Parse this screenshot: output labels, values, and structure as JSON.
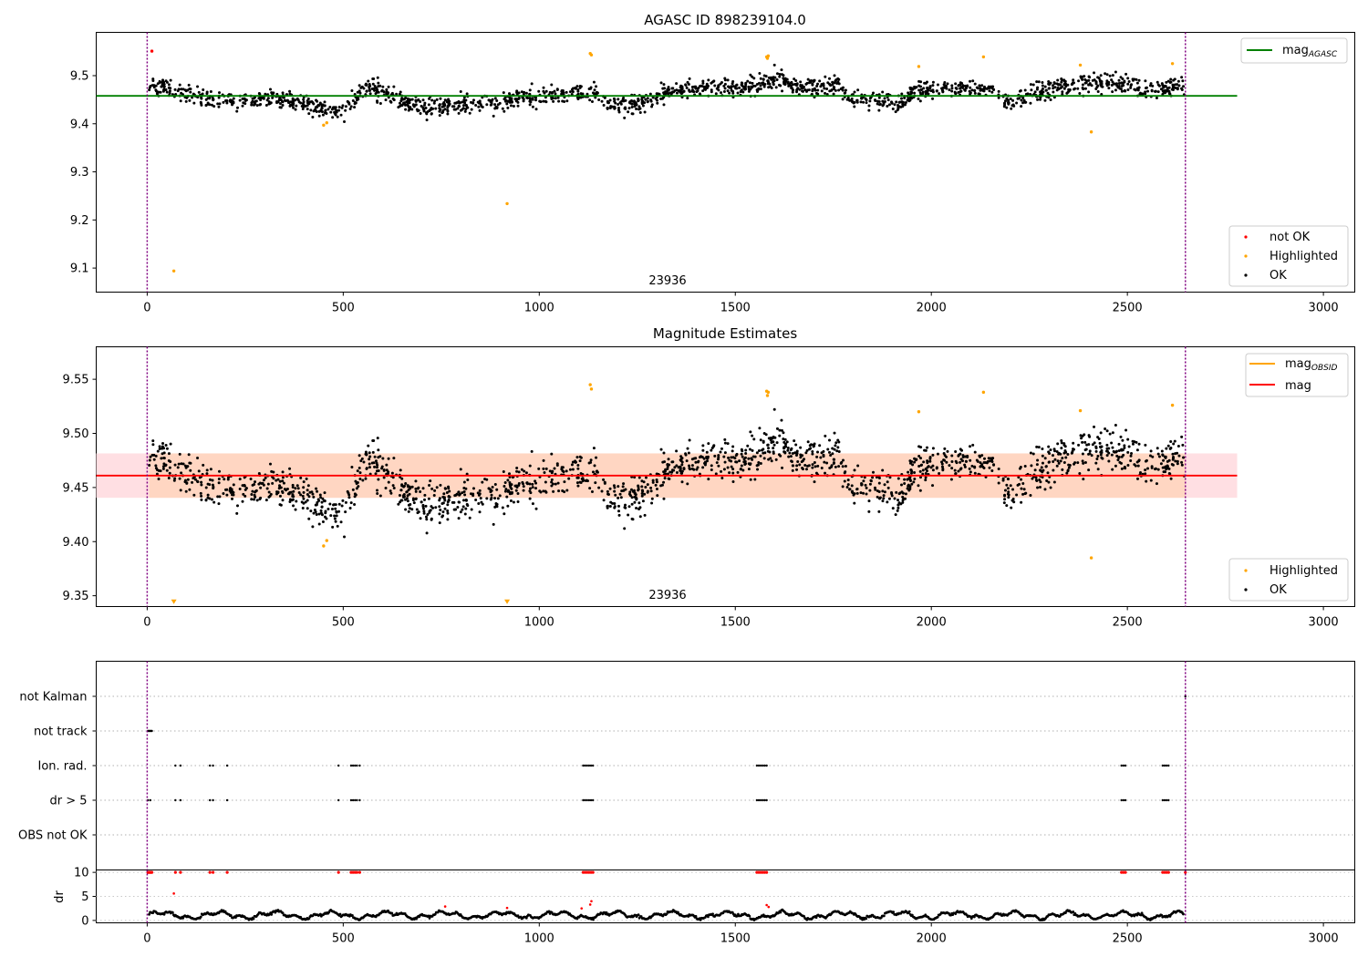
{
  "chart_data": [
    {
      "type": "scatter",
      "title": "AGASC ID 898239104.0",
      "xlim": [
        -130,
        3080
      ],
      "ylim": [
        9.05,
        9.59
      ],
      "xticks": [
        0,
        500,
        1000,
        1500,
        2000,
        2500,
        3000
      ],
      "yticks": [
        9.1,
        9.2,
        9.3,
        9.4,
        9.5
      ],
      "ytick_labels": [
        "9.1",
        "9.2",
        "9.3",
        "9.4",
        "9.5"
      ],
      "annotation": {
        "text": "23936",
        "x": 1320,
        "y_label_pos": "bottom"
      },
      "vlines": [
        0,
        2648
      ],
      "hline": {
        "name": "mag",
        "sub": "AGASC",
        "y": 9.458,
        "x_range": [
          -130,
          2780
        ],
        "color": "#008000"
      },
      "legend_lines": [
        {
          "name": "mag",
          "sub": "AGASC",
          "color": "#008000"
        }
      ],
      "legend_points": [
        {
          "name": "not OK",
          "color": "#ff0000"
        },
        {
          "name": "Highlighted",
          "color": "#ffa500"
        },
        {
          "name": "OK",
          "color": "#000000"
        }
      ],
      "series": [
        {
          "name": "not OK",
          "color": "#ff0000",
          "points": [
            [
              12,
              9.551
            ]
          ]
        },
        {
          "name": "Highlighted",
          "color": "#ffa500",
          "points": [
            [
              68,
              9.094
            ],
            [
              450,
              9.397
            ],
            [
              458,
              9.402
            ],
            [
              918,
              9.234
            ],
            [
              1130,
              9.546
            ],
            [
              1133,
              9.543
            ],
            [
              1580,
              9.539
            ],
            [
              1582,
              9.536
            ],
            [
              1584,
              9.541
            ],
            [
              1968,
              9.519
            ],
            [
              2133,
              9.539
            ],
            [
              2380,
              9.522
            ],
            [
              2408,
              9.383
            ],
            [
              2615,
              9.525
            ]
          ]
        }
      ],
      "ok_series": {
        "name": "OK",
        "color": "#000000",
        "x_range": [
          5,
          2645
        ],
        "count": 1800,
        "scatter": 0.0095,
        "trend": [
          [
            5,
            9.482
          ],
          [
            60,
            9.472
          ],
          [
            120,
            9.455
          ],
          [
            200,
            9.447
          ],
          [
            300,
            9.452
          ],
          [
            380,
            9.448
          ],
          [
            440,
            9.432
          ],
          [
            490,
            9.423
          ],
          [
            540,
            9.46
          ],
          [
            560,
            9.478
          ],
          [
            640,
            9.453
          ],
          [
            700,
            9.432
          ],
          [
            800,
            9.44
          ],
          [
            880,
            9.442
          ],
          [
            960,
            9.456
          ],
          [
            1100,
            9.462
          ],
          [
            1140,
            9.468
          ],
          [
            1170,
            9.445
          ],
          [
            1240,
            9.433
          ],
          [
            1300,
            9.462
          ],
          [
            1400,
            9.473
          ],
          [
            1500,
            9.473
          ],
          [
            1560,
            9.477
          ],
          [
            1600,
            9.496
          ],
          [
            1650,
            9.478
          ],
          [
            1760,
            9.478
          ],
          [
            1800,
            9.452
          ],
          [
            1880,
            9.452
          ],
          [
            1910,
            9.432
          ],
          [
            1960,
            9.472
          ],
          [
            2050,
            9.472
          ],
          [
            2150,
            9.476
          ],
          [
            2200,
            9.438
          ],
          [
            2240,
            9.462
          ],
          [
            2350,
            9.478
          ],
          [
            2400,
            9.487
          ],
          [
            2500,
            9.485
          ],
          [
            2540,
            9.472
          ],
          [
            2645,
            9.477
          ]
        ]
      }
    },
    {
      "type": "scatter",
      "title": "Magnitude Estimates",
      "xlim": [
        -130,
        3080
      ],
      "ylim": [
        9.34,
        9.58
      ],
      "xticks": [
        0,
        500,
        1000,
        1500,
        2000,
        2500,
        3000
      ],
      "yticks": [
        9.35,
        9.4,
        9.45,
        9.5,
        9.55
      ],
      "ytick_labels": [
        "9.35",
        "9.40",
        "9.45",
        "9.50",
        "9.55"
      ],
      "annotation": {
        "text": "23936",
        "x": 1320,
        "y_label_pos": "bottom"
      },
      "vlines": [
        0,
        2648
      ],
      "mag_line": {
        "name": "mag",
        "y": 9.461,
        "x_range": [
          -130,
          2780
        ],
        "color": "#ff0000"
      },
      "mag_band": {
        "y_range": [
          9.4405,
          9.4815
        ],
        "x_range": [
          -130,
          2780
        ],
        "color": "#ffdfe3"
      },
      "obsid_band": {
        "name": "mag",
        "sub": "OBSID",
        "y_range": [
          9.4405,
          9.4815
        ],
        "x_range": [
          5,
          2648
        ],
        "color": "#ffd6c2"
      },
      "legend_lines": [
        {
          "name": "mag",
          "sub": "OBSID",
          "color": "#ffa500"
        },
        {
          "name": "mag",
          "sub": "",
          "color": "#ff0000"
        }
      ],
      "legend_points": [
        {
          "name": "Highlighted",
          "color": "#ffa500"
        },
        {
          "name": "OK",
          "color": "#000000"
        }
      ],
      "series": [
        {
          "name": "Highlighted",
          "color": "#ffa500",
          "points": [
            [
              450,
              9.396
            ],
            [
              458,
              9.401
            ],
            [
              1130,
              9.545
            ],
            [
              1133,
              9.541
            ],
            [
              1580,
              9.539
            ],
            [
              1582,
              9.535
            ],
            [
              1584,
              9.538
            ],
            [
              1968,
              9.52
            ],
            [
              2133,
              9.538
            ],
            [
              2380,
              9.521
            ],
            [
              2408,
              9.385
            ],
            [
              2615,
              9.526
            ]
          ]
        },
        {
          "name": "Highlighted (off-scale)",
          "color": "#ffa500",
          "marker": "triangle",
          "points": [
            [
              68,
              9.344
            ],
            [
              918,
              9.344
            ]
          ]
        }
      ]
    },
    {
      "type": "scatter",
      "title": "",
      "xlim": [
        -130,
        3080
      ],
      "xticks": [
        0,
        500,
        1000,
        1500,
        2000,
        2500,
        3000
      ],
      "categories": [
        "not Kalman",
        "not track",
        "Ion. rad.",
        "dr > 5",
        "OBS not OK"
      ],
      "vlines": [
        0,
        2648
      ],
      "flags": [
        {
          "category": "not Kalman",
          "x": [
            2648
          ]
        },
        {
          "category": "not track",
          "x": [
            2,
            4,
            6,
            8,
            10,
            12
          ]
        },
        {
          "category": "Ion. rad.",
          "x": [
            72,
            85,
            160,
            168,
            204,
            488,
            520,
            525,
            530,
            535,
            542,
            1112,
            1117,
            1122,
            1127,
            1132,
            1137,
            1555,
            1560,
            1565,
            1570,
            1575,
            1580,
            2485,
            2490,
            2495,
            2590,
            2595,
            2600,
            2605
          ]
        },
        {
          "category": "dr > 5",
          "x": [
            2,
            8,
            72,
            85,
            160,
            168,
            204,
            488,
            520,
            525,
            530,
            535,
            542,
            1112,
            1117,
            1122,
            1127,
            1132,
            1137,
            1555,
            1560,
            1565,
            1570,
            1575,
            1580,
            2485,
            2490,
            2495,
            2590,
            2595,
            2600,
            2605
          ]
        },
        {
          "category": "OBS not OK",
          "x": []
        }
      ]
    },
    {
      "type": "scatter",
      "title": "",
      "xlim": [
        -130,
        3080
      ],
      "ylim": [
        -0.5,
        10.5
      ],
      "ylabel": "dr",
      "yticks": [
        0,
        5,
        10
      ],
      "ytick_labels": [
        "0",
        "5",
        "10"
      ],
      "xticks": [
        0,
        500,
        1000,
        1500,
        2000,
        2500,
        3000
      ],
      "xtick_labels": [
        "0",
        "500",
        "1000",
        "1500",
        "2000",
        "2500",
        "3000"
      ],
      "vlines": [
        0,
        2648
      ],
      "clipped_points": {
        "color": "#ff0000",
        "y": 10,
        "x": [
          2,
          4,
          6,
          8,
          10,
          12,
          72,
          85,
          160,
          168,
          204,
          488,
          520,
          525,
          530,
          535,
          542,
          1112,
          1117,
          1122,
          1127,
          1132,
          1137,
          1555,
          1560,
          1565,
          1570,
          1575,
          1580,
          2485,
          2490,
          2495,
          2590,
          2595,
          2600,
          2605,
          2648
        ]
      },
      "outliers": {
        "color": "#ff0000",
        "points": [
          [
            68,
            5.6
          ],
          [
            1130,
            3.3
          ],
          [
            1133,
            4.0
          ],
          [
            1580,
            3.2
          ],
          [
            1585,
            2.8
          ],
          [
            760,
            2.9
          ],
          [
            918,
            2.6
          ],
          [
            1108,
            2.5
          ]
        ]
      },
      "dr_series": {
        "color": "#000000",
        "x_range": [
          5,
          2645
        ],
        "count": 1100
      }
    }
  ],
  "axis_tick_labels": [
    "0",
    "500",
    "1000",
    "1500",
    "2000",
    "2500",
    "3000"
  ]
}
